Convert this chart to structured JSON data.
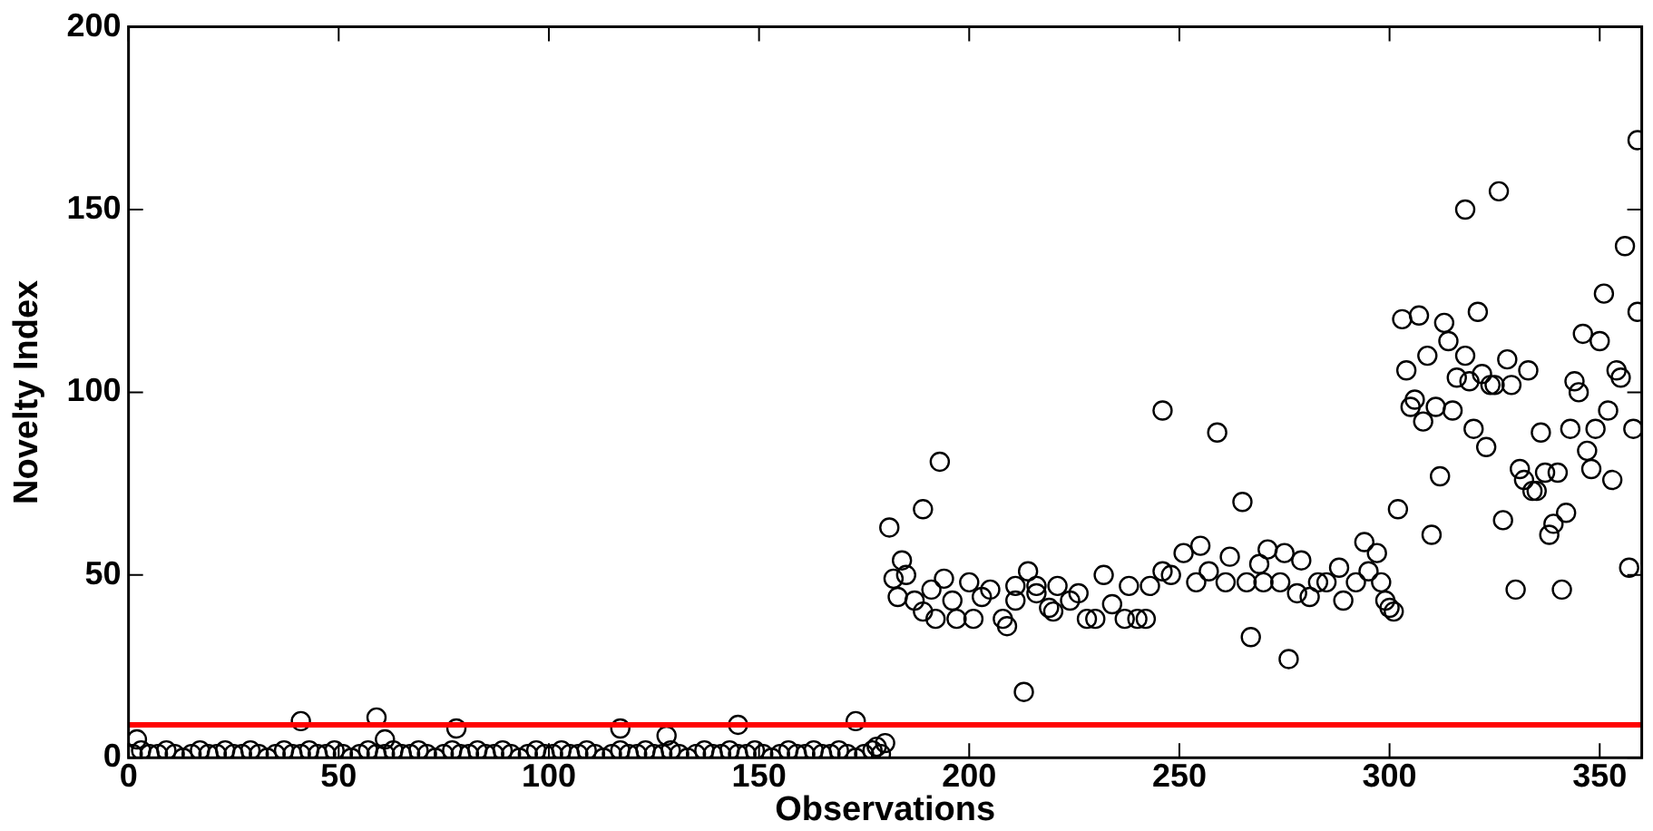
{
  "chart_data": {
    "type": "scatter",
    "xlabel": "Observations",
    "ylabel": "Novelty Index",
    "xlim": [
      0,
      360
    ],
    "ylim": [
      0,
      200
    ],
    "xticks": [
      0,
      50,
      100,
      150,
      200,
      250,
      300,
      350
    ],
    "yticks": [
      0,
      50,
      100,
      150,
      200
    ],
    "grid": false,
    "legend": false,
    "marker": "circle",
    "series": [
      {
        "color": "#000000",
        "x": [
          1,
          3,
          5,
          7,
          9,
          11,
          13,
          15,
          17,
          19,
          21,
          23,
          25,
          27,
          29,
          31,
          33,
          35,
          37,
          39,
          41,
          43,
          45,
          47,
          49,
          51,
          53,
          55,
          57,
          59,
          61,
          63,
          65,
          67,
          69,
          71,
          73,
          75,
          77,
          79,
          81,
          83,
          85,
          87,
          89,
          91,
          93,
          95,
          97,
          99,
          101,
          103,
          105,
          107,
          109,
          111,
          113,
          115,
          117,
          119,
          121,
          123,
          125,
          127,
          129,
          131,
          133,
          135,
          137,
          139,
          141,
          143,
          145,
          147,
          149,
          151,
          153,
          155,
          157,
          159,
          161,
          163,
          165,
          167,
          169,
          171,
          173,
          175,
          177,
          179,
          2,
          41,
          59,
          61,
          78,
          117,
          128,
          145,
          173,
          178,
          180,
          181,
          182,
          183,
          184,
          185,
          187,
          189,
          189,
          191,
          192,
          193,
          194,
          196,
          197,
          200,
          201,
          203,
          205,
          208,
          209,
          211,
          211,
          213,
          214,
          216,
          216,
          219,
          220,
          221,
          224,
          226,
          228,
          230,
          232,
          234,
          237,
          238,
          240,
          242,
          243,
          246,
          246,
          248,
          251,
          254,
          255,
          257,
          259,
          261,
          262,
          265,
          266,
          267,
          269,
          270,
          271,
          274,
          275,
          276,
          278,
          279,
          281,
          283,
          285,
          288,
          289,
          292,
          294,
          295,
          297,
          298,
          299,
          300,
          301,
          302,
          303,
          304,
          305,
          306,
          307,
          308,
          309,
          310,
          311,
          312,
          313,
          314,
          315,
          316,
          318,
          318,
          319,
          320,
          321,
          322,
          323,
          324,
          325,
          326,
          327,
          328,
          329,
          330,
          331,
          332,
          333,
          334,
          335,
          336,
          337,
          338,
          339,
          340,
          341,
          342,
          343,
          344,
          345,
          346,
          347,
          348,
          349,
          350,
          351,
          352,
          353,
          354,
          355,
          356,
          357,
          358,
          359,
          359
        ],
        "values": [
          1,
          2,
          1,
          1,
          2,
          1,
          0,
          1,
          2,
          1,
          1,
          2,
          1,
          1,
          2,
          1,
          0,
          1,
          2,
          1,
          1,
          2,
          1,
          1,
          2,
          1,
          0,
          1,
          2,
          1,
          1,
          2,
          1,
          1,
          2,
          1,
          0,
          1,
          2,
          1,
          1,
          2,
          1,
          1,
          2,
          1,
          0,
          1,
          2,
          1,
          1,
          2,
          1,
          1,
          2,
          1,
          0,
          1,
          2,
          1,
          1,
          2,
          1,
          1,
          2,
          1,
          0,
          1,
          2,
          1,
          1,
          2,
          1,
          1,
          2,
          1,
          0,
          1,
          2,
          1,
          1,
          2,
          1,
          1,
          2,
          1,
          0,
          1,
          2,
          1,
          5,
          10,
          11,
          5,
          8,
          8,
          6,
          9,
          10,
          3,
          4,
          63,
          49,
          44,
          54,
          50,
          43,
          68,
          40,
          46,
          38,
          81,
          49,
          43,
          38,
          48,
          38,
          44,
          46,
          38,
          36,
          47,
          43,
          18,
          51,
          47,
          45,
          41,
          40,
          47,
          43,
          45,
          38,
          38,
          50,
          42,
          38,
          47,
          38,
          38,
          47,
          51,
          95,
          50,
          56,
          48,
          58,
          51,
          89,
          48,
          55,
          70,
          48,
          33,
          53,
          48,
          57,
          48,
          56,
          27,
          45,
          54,
          44,
          48,
          48,
          52,
          43,
          48,
          59,
          51,
          56,
          48,
          43,
          41,
          40,
          68,
          120,
          106,
          96,
          98,
          121,
          92,
          110,
          61,
          96,
          77,
          119,
          114,
          95,
          104,
          110,
          150,
          103,
          90,
          122,
          105,
          85,
          102,
          102,
          155,
          65,
          109,
          102,
          46,
          79,
          76,
          106,
          73,
          73,
          89,
          78,
          61,
          64,
          78,
          46,
          67,
          90,
          103,
          100,
          116,
          84,
          79,
          90,
          114,
          127,
          95,
          76,
          106,
          104,
          140,
          52,
          90,
          122,
          169
        ]
      }
    ],
    "ref_lines": [
      {
        "axis": "y",
        "value": 9,
        "color": "#ff0000"
      }
    ]
  }
}
